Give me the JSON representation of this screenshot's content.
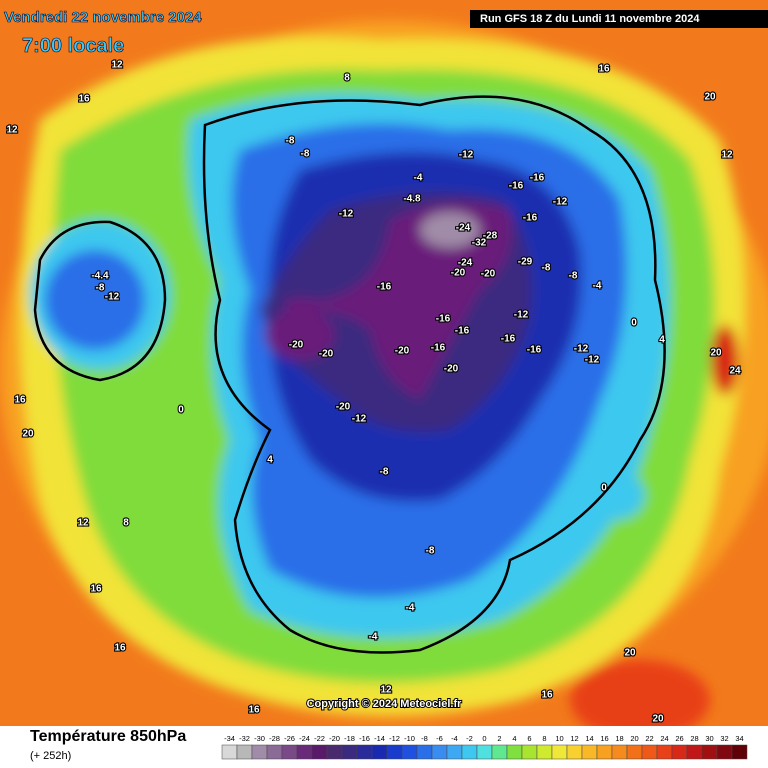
{
  "header": {
    "date": "Vendredi 22 novembre 2024",
    "time": "7:00 locale",
    "run": "Run GFS 18 Z du Lundi 11 novembre 2024"
  },
  "map": {
    "credit": "Copyright © 2024 Meteociel.fr",
    "labels": [
      12,
      16,
      12,
      12,
      20,
      16,
      8,
      -8,
      -8,
      -4,
      -4.8,
      -12,
      -16,
      -16,
      -12,
      -16,
      -12,
      -24,
      -28,
      -32,
      -20,
      -24,
      -20,
      -29,
      -16,
      -12,
      -16,
      -16,
      -20,
      -20,
      -20,
      -16,
      -20,
      -16,
      -16,
      -12,
      -12,
      -20,
      -12,
      -8,
      -8,
      -8,
      -4,
      0,
      4,
      -12,
      -8,
      -4.4,
      0,
      -8,
      -4,
      -4,
      0,
      4,
      12,
      16,
      20,
      24,
      20,
      20,
      16,
      16,
      20,
      16,
      16,
      12,
      8
    ]
  },
  "footer": {
    "title": "Température 850hPa",
    "lead": "(+ 252h)",
    "scale": {
      "ticks": [
        -34,
        -32,
        -30,
        -28,
        -26,
        -24,
        -22,
        -20,
        -18,
        -16,
        -14,
        -12,
        -10,
        -8,
        -6,
        -4,
        -2,
        0,
        2,
        4,
        6,
        8,
        10,
        12,
        14,
        16,
        18,
        20,
        22,
        24,
        26,
        28,
        30,
        32,
        34
      ],
      "colors": [
        "#d8d8d8",
        "#b8b8b8",
        "#a08ca8",
        "#8a6a96",
        "#7a4a88",
        "#6a2a7a",
        "#5a1a6a",
        "#4a2a6e",
        "#3a2a80",
        "#2a2a9a",
        "#1a2ab0",
        "#1a3ccc",
        "#2050e0",
        "#2a6ee8",
        "#3a8cf0",
        "#3ea8f2",
        "#3ec8ef",
        "#50e0e0",
        "#60e890",
        "#80e040",
        "#a8e430",
        "#d0ea30",
        "#f0e838",
        "#f8d030",
        "#f8b828",
        "#f8a020",
        "#f58a1e",
        "#f27018",
        "#ee5818",
        "#e84018",
        "#d82818",
        "#c01818",
        "#a01010",
        "#800810",
        "#600008"
      ]
    }
  }
}
